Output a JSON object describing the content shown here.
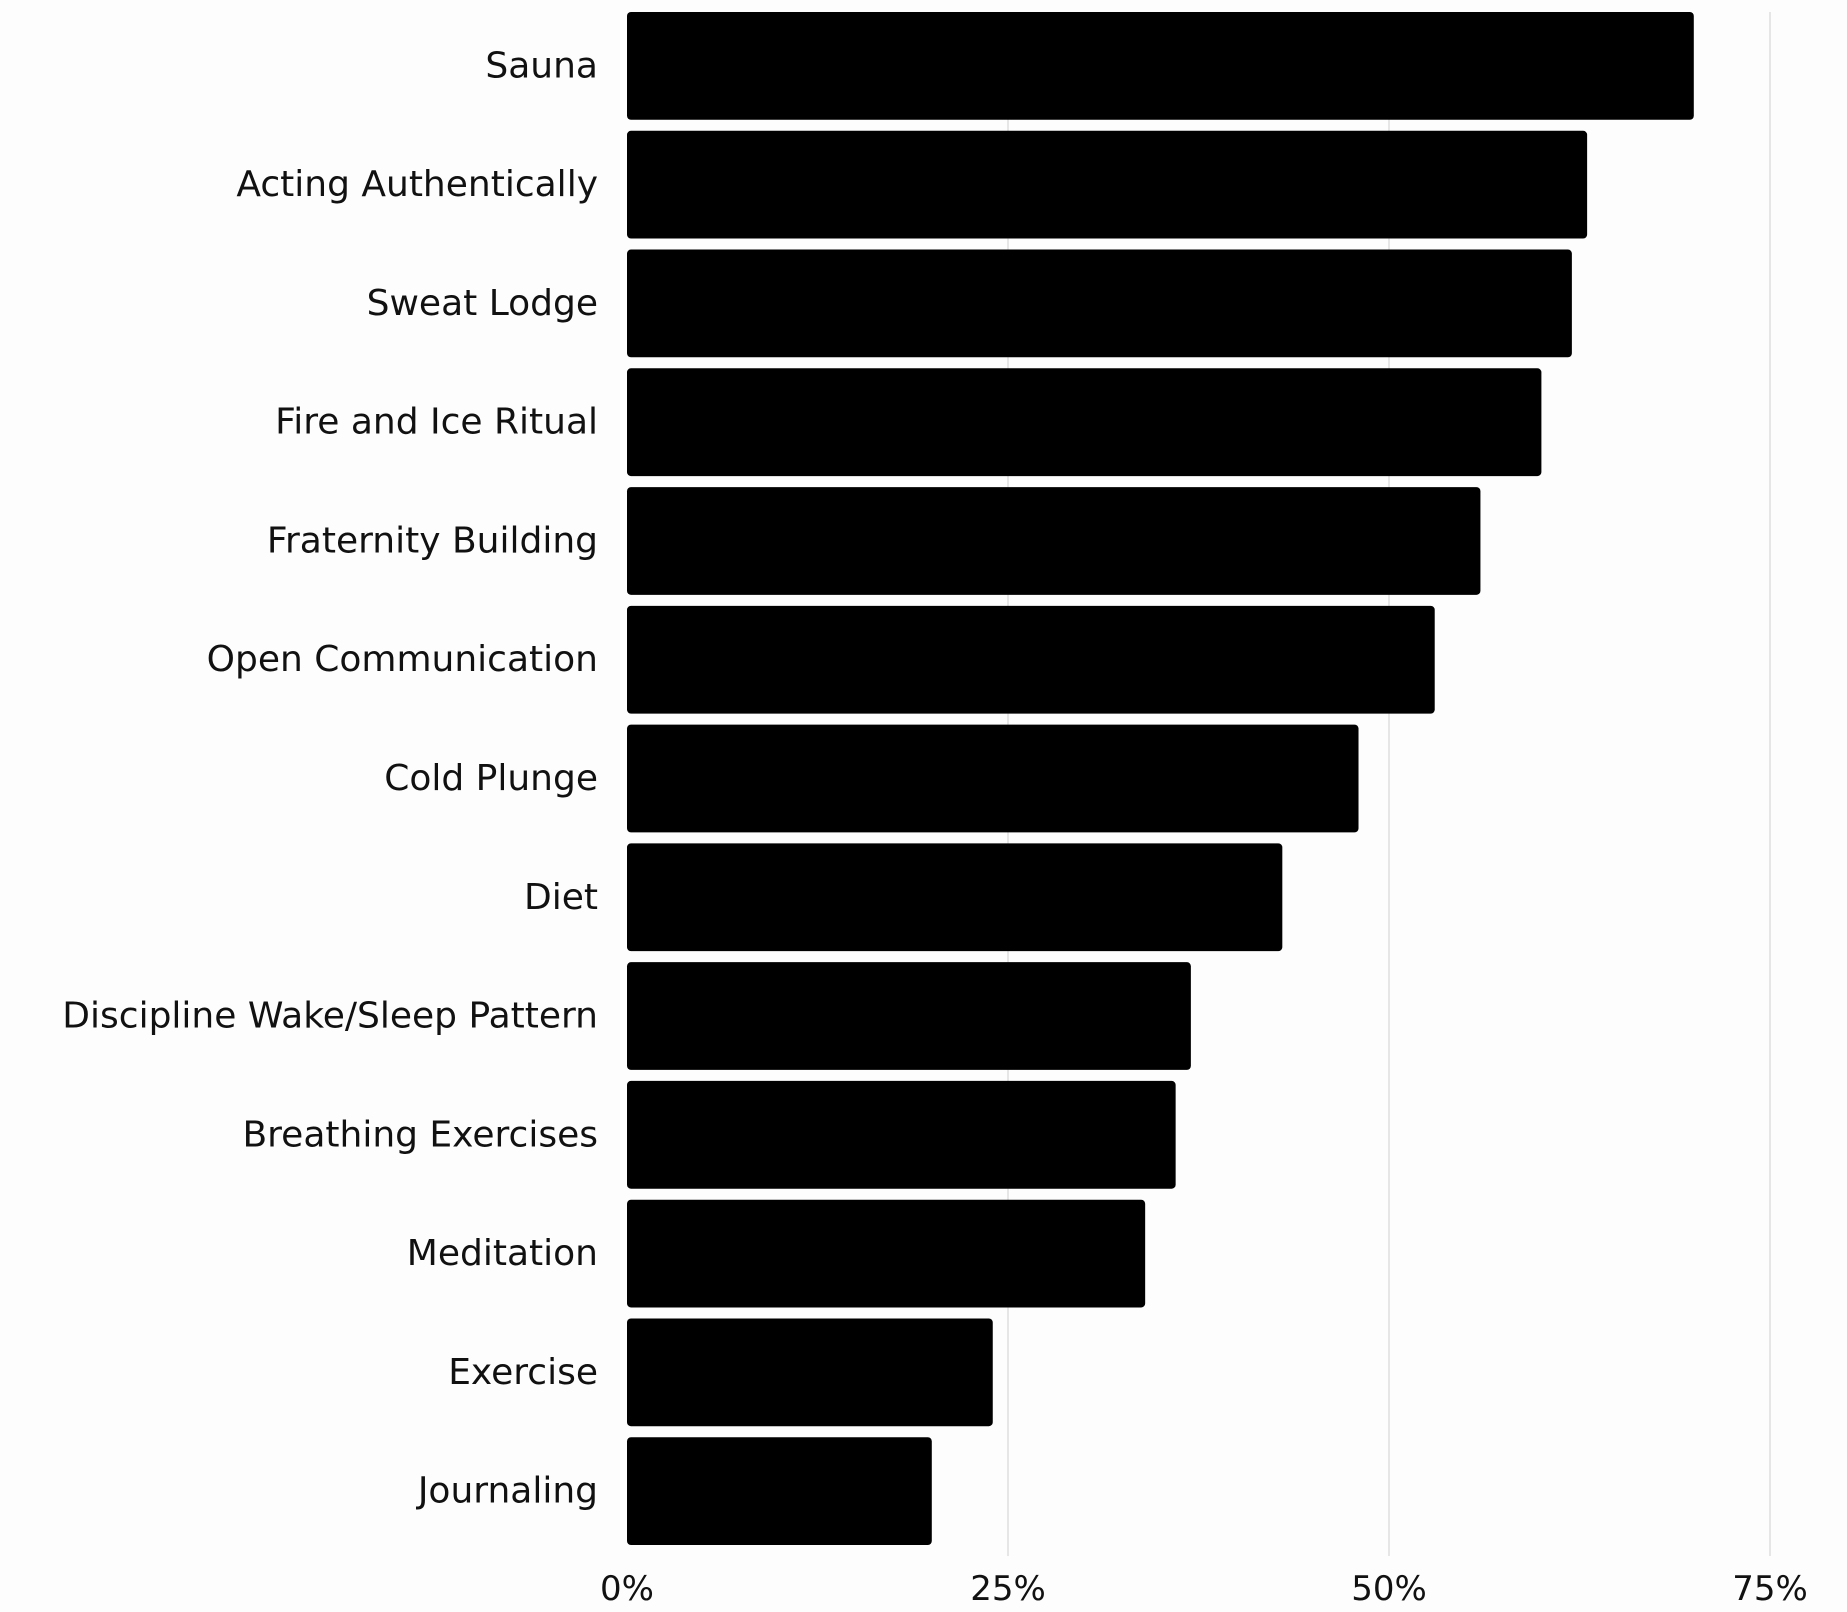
{
  "chart_data": {
    "type": "bar",
    "orientation": "horizontal",
    "title": "",
    "xlabel": "",
    "ylabel": "",
    "categories": [
      "Sauna",
      "Acting Authentically",
      "Sweat Lodge",
      "Fire and Ice Ritual",
      "Fraternity Building",
      "Open Communication",
      "Cold Plunge",
      "Diet",
      "Discipline Wake/Sleep Pattern",
      "Breathing Exercises",
      "Meditation",
      "Exercise",
      "Journaling"
    ],
    "values": [
      70,
      63,
      62,
      60,
      56,
      53,
      48,
      43,
      37,
      36,
      34,
      24,
      20
    ],
    "xlim": [
      0,
      75
    ],
    "x_ticks": [
      0,
      25,
      50,
      75
    ],
    "x_tick_labels": [
      "0%",
      "25%",
      "50%",
      "75%"
    ],
    "unit": "%",
    "grid": true,
    "grid_axis": "x",
    "legend": "none",
    "colors": {
      "bar": "#000000",
      "grid": "#d6d6d6",
      "text": "#111111",
      "background": "#fdfdfd"
    }
  }
}
